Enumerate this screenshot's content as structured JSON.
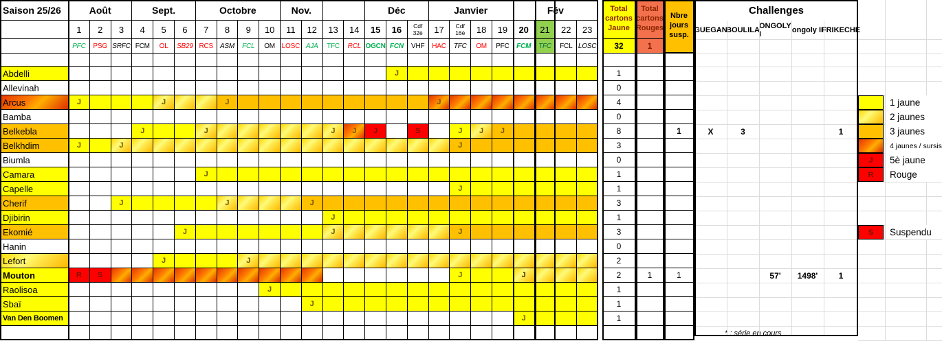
{
  "title": "Saison 25/26",
  "footnote": "* : série en cours",
  "colors": {
    "yellow": "#FFFF00",
    "orange": "#FFC000",
    "red": "#FF0000",
    "salmon": "#F4714D",
    "green_cell": "#92D050",
    "opp_green": "#00B050",
    "opp_red": "#FF0000",
    "opp_black": "#000000",
    "opp_darkgreen": "#00703C",
    "header_dark_red": "#8B2500"
  },
  "months": [
    {
      "label": "Août",
      "span": 3
    },
    {
      "label": "Sept.",
      "span": 3
    },
    {
      "label": "Octobre",
      "span": 4
    },
    {
      "label": "Nov.",
      "span": 2
    },
    {
      "label": "",
      "span": 2
    },
    {
      "label": "Déc",
      "span": 3
    },
    {
      "label": "Janvier",
      "span": 4
    },
    {
      "label": "Fév",
      "span": 4
    }
  ],
  "columns": [
    {
      "day": "1",
      "opp": "PFC",
      "color": "green",
      "italic": true
    },
    {
      "day": "2",
      "opp": "PSG",
      "color": "red"
    },
    {
      "day": "3",
      "opp": "SRFC",
      "color": "black",
      "italic": true
    },
    {
      "day": "4",
      "opp": "FCM",
      "color": "black"
    },
    {
      "day": "5",
      "opp": "OL",
      "color": "red"
    },
    {
      "day": "6",
      "opp": "SB29",
      "color": "red",
      "italic": true
    },
    {
      "day": "7",
      "opp": "RCS",
      "color": "red"
    },
    {
      "day": "8",
      "opp": "ASM",
      "color": "black",
      "italic": true
    },
    {
      "day": "9",
      "opp": "FCL",
      "color": "green",
      "italic": true
    },
    {
      "day": "10",
      "opp": "OM",
      "color": "black"
    },
    {
      "day": "11",
      "opp": "LOSC",
      "color": "red"
    },
    {
      "day": "12",
      "opp": "AJA",
      "color": "green",
      "italic": true
    },
    {
      "day": "13",
      "opp": "TFC",
      "color": "green"
    },
    {
      "day": "14",
      "opp": "RCL",
      "color": "red",
      "italic": true
    },
    {
      "day": "15",
      "bold": true,
      "opp": "OGCN",
      "color": "green",
      "oppBold": true
    },
    {
      "day": "16",
      "bold": true,
      "opp": "FCN",
      "color": "green",
      "oppBold": true,
      "italic": true
    },
    {
      "day": "Cdf 32è",
      "cdf": true,
      "opp": "VHF",
      "color": "black"
    },
    {
      "day": "17",
      "opp": "HAC",
      "color": "red"
    },
    {
      "day": "Cdf 16è",
      "cdf": true,
      "opp": "TFC",
      "color": "black",
      "italic": true
    },
    {
      "day": "18",
      "opp": "OM",
      "color": "red"
    },
    {
      "day": "19",
      "opp": "PFC",
      "color": "black"
    },
    {
      "day": "20",
      "bold": true,
      "opp": "FCM",
      "color": "green",
      "oppBold": true,
      "italic": true
    },
    {
      "day": "21",
      "greenBg": true,
      "opp": "TFC",
      "color": "darkgreen",
      "italic": true
    },
    {
      "day": "22",
      "opp": "FCL",
      "color": "black"
    },
    {
      "day": "23",
      "opp": "LOSC",
      "color": "black",
      "italic": true
    }
  ],
  "headers": {
    "total_jaune": "Total cartons Jaune",
    "total_jaune_value": "32",
    "total_rouges": "Total cartons Rouges",
    "total_rouges_value": "1",
    "susp": "Nbre jours susp.",
    "challenges": "Challenges",
    "challenge_names": [
      "GUEGAN",
      "BOULILA",
      "ONGOLY I",
      "ongoly II",
      "FRIKECHE"
    ]
  },
  "players": [
    {
      "name": "Abdelli",
      "style": "y1",
      "j": "1",
      "cells": [
        "",
        "",
        "",
        "",
        "",
        "",
        "",
        "",
        "",
        "",
        "",
        "",
        "",
        "",
        "",
        "J1",
        "1",
        "1",
        "1",
        "1",
        "1",
        "1",
        "1",
        "1",
        "1"
      ]
    },
    {
      "name": "Allevinah",
      "style": "",
      "j": "0",
      "cells": [
        "",
        "",
        "",
        "",
        "",
        "",
        "",
        "",
        "",
        "",
        "",
        "",
        "",
        "",
        "",
        "",
        "",
        "",
        "",
        "",
        "",
        "",
        "",
        "",
        ""
      ]
    },
    {
      "name": "Arcus",
      "style": "y4",
      "j": "4",
      "cells": [
        "J1",
        "1",
        "1",
        "1",
        "J2",
        "2",
        "2",
        "J3",
        "3",
        "3",
        "3",
        "3",
        "3",
        "3",
        "3",
        "3",
        "3",
        "J4",
        "4",
        "4",
        "4",
        "4",
        "4",
        "4",
        "4"
      ]
    },
    {
      "name": "Bamba",
      "style": "",
      "j": "0",
      "cells": [
        "",
        "",
        "",
        "",
        "",
        "",
        "",
        "",
        "",
        "",
        "",
        "",
        "",
        "",
        "",
        "",
        "",
        "",
        "",
        "",
        "",
        "",
        "",
        "",
        ""
      ]
    },
    {
      "name": "Belkebla",
      "style": "y3",
      "j": "8",
      "s": "1",
      "sBold": true,
      "guegan": "X",
      "boulila": "3",
      "frikeche": "1",
      "cells": [
        "",
        "",
        "",
        "J1",
        "1",
        "1",
        "J2",
        "2",
        "2",
        "2",
        "2",
        "2",
        "J2",
        "J4",
        "J5",
        "",
        "S",
        "",
        "J1",
        "J2",
        "J3",
        "3",
        "3",
        "3",
        "3"
      ]
    },
    {
      "name": "Belkhdim",
      "style": "y3",
      "j": "3",
      "cells": [
        "J1",
        "1",
        "J2",
        "2",
        "2",
        "2",
        "2",
        "2",
        "2",
        "2",
        "2",
        "2",
        "2",
        "2",
        "2",
        "2",
        "2",
        "2",
        "J3",
        "3",
        "3",
        "3",
        "3",
        "3",
        "3"
      ]
    },
    {
      "name": "Biumla",
      "style": "",
      "j": "0",
      "cells": [
        "",
        "",
        "",
        "",
        "",
        "",
        "",
        "",
        "",
        "",
        "",
        "",
        "",
        "",
        "",
        "",
        "",
        "",
        "",
        "",
        "",
        "",
        "",
        "",
        ""
      ]
    },
    {
      "name": "Camara",
      "style": "y1",
      "j": "1",
      "cells": [
        "",
        "",
        "",
        "",
        "",
        "",
        "J1",
        "1",
        "1",
        "1",
        "1",
        "1",
        "1",
        "1",
        "1",
        "1",
        "1",
        "1",
        "1",
        "1",
        "1",
        "1",
        "1",
        "1",
        "1"
      ]
    },
    {
      "name": "Capelle",
      "style": "y1",
      "j": "1",
      "cells": [
        "",
        "",
        "",
        "",
        "",
        "",
        "",
        "",
        "",
        "",
        "",
        "",
        "",
        "",
        "",
        "",
        "",
        "",
        "J1",
        "1",
        "1",
        "1",
        "1",
        "1",
        "1"
      ]
    },
    {
      "name": "Cherif",
      "style": "y3",
      "j": "3",
      "cells": [
        "",
        "",
        "J1",
        "1",
        "1",
        "1",
        "1",
        "J2",
        "2",
        "2",
        "2",
        "J3",
        "3",
        "3",
        "3",
        "3",
        "3",
        "3",
        "3",
        "3",
        "3",
        "3",
        "3",
        "3",
        "3"
      ]
    },
    {
      "name": "Djibirin",
      "style": "y1",
      "j": "1",
      "cells": [
        "",
        "",
        "",
        "",
        "",
        "",
        "",
        "",
        "",
        "",
        "",
        "",
        "J1",
        "1",
        "1",
        "1",
        "1",
        "1",
        "1",
        "1",
        "1",
        "1",
        "1",
        "1",
        "1"
      ]
    },
    {
      "name": "Ekomié",
      "style": "y3",
      "j": "3",
      "cells": [
        "",
        "",
        "",
        "",
        "",
        "J1",
        "1",
        "1",
        "1",
        "1",
        "1",
        "1",
        "J2",
        "2",
        "2",
        "2",
        "2",
        "2",
        "J3",
        "3",
        "3",
        "3",
        "3",
        "3",
        "3"
      ]
    },
    {
      "name": "Hanin",
      "style": "",
      "j": "0",
      "cells": [
        "",
        "",
        "",
        "",
        "",
        "",
        "",
        "",
        "",
        "",
        "",
        "",
        "",
        "",
        "",
        "",
        "",
        "",
        "",
        "",
        "",
        "",
        "",
        "",
        ""
      ]
    },
    {
      "name": "Lefort",
      "style": "y2",
      "j": "2",
      "cells": [
        "",
        "",
        "",
        "",
        "J1",
        "1",
        "1",
        "1",
        "J2",
        "2",
        "2",
        "2",
        "2",
        "2",
        "2",
        "2",
        "2",
        "2",
        "2",
        "2",
        "2",
        "2",
        "2",
        "2",
        "2"
      ]
    },
    {
      "name": "Mouton",
      "style": "y1",
      "bold": true,
      "j": "2",
      "r": "1",
      "s": "1",
      "ongoly1": "57'",
      "ongoly2": "1498'",
      "frikeche": "1",
      "cells": [
        "R",
        "S",
        "4",
        "4",
        "4",
        "4",
        "4",
        "4",
        "4",
        "4",
        "4",
        "4",
        "",
        "",
        "",
        "",
        "",
        "",
        "J1",
        "1",
        "1",
        "J2b",
        "2",
        "2",
        "2"
      ]
    },
    {
      "name": "Raolisoa",
      "style": "y1",
      "j": "1",
      "cells": [
        "",
        "",
        "",
        "",
        "",
        "",
        "",
        "",
        "",
        "J1",
        "1",
        "1",
        "1",
        "1",
        "1",
        "1",
        "1",
        "1",
        "1",
        "1",
        "1",
        "1",
        "1",
        "1",
        "1"
      ]
    },
    {
      "name": "Sbaï",
      "style": "y1",
      "j": "1",
      "cells": [
        "",
        "",
        "",
        "",
        "",
        "",
        "",
        "",
        "",
        "",
        "",
        "J1",
        "1",
        "1",
        "1",
        "1",
        "1",
        "1",
        "1",
        "1",
        "1",
        "1",
        "1",
        "1",
        "1"
      ]
    },
    {
      "name": "Van Den Boomen",
      "style": "y1",
      "bold": true,
      "small": true,
      "j": "1",
      "cells": [
        "",
        "",
        "",
        "",
        "",
        "",
        "",
        "",
        "",
        "",
        "",
        "",
        "",
        "",
        "",
        "",
        "",
        "",
        "",
        "",
        "",
        "J1",
        "1",
        "1",
        "1"
      ]
    }
  ],
  "legend": {
    "items": [
      {
        "code": "1",
        "label": "1 jaune"
      },
      {
        "code": "2",
        "label": "2 jaunes"
      },
      {
        "code": "3",
        "label": "3 jaunes"
      },
      {
        "code": "4",
        "label": "4 jaunes / sursis",
        "small": true
      },
      {
        "code": "J5",
        "label": "5è jaune"
      },
      {
        "code": "R",
        "label": "Rouge"
      }
    ],
    "suspended": {
      "code": "S",
      "label": "Suspendu"
    }
  }
}
